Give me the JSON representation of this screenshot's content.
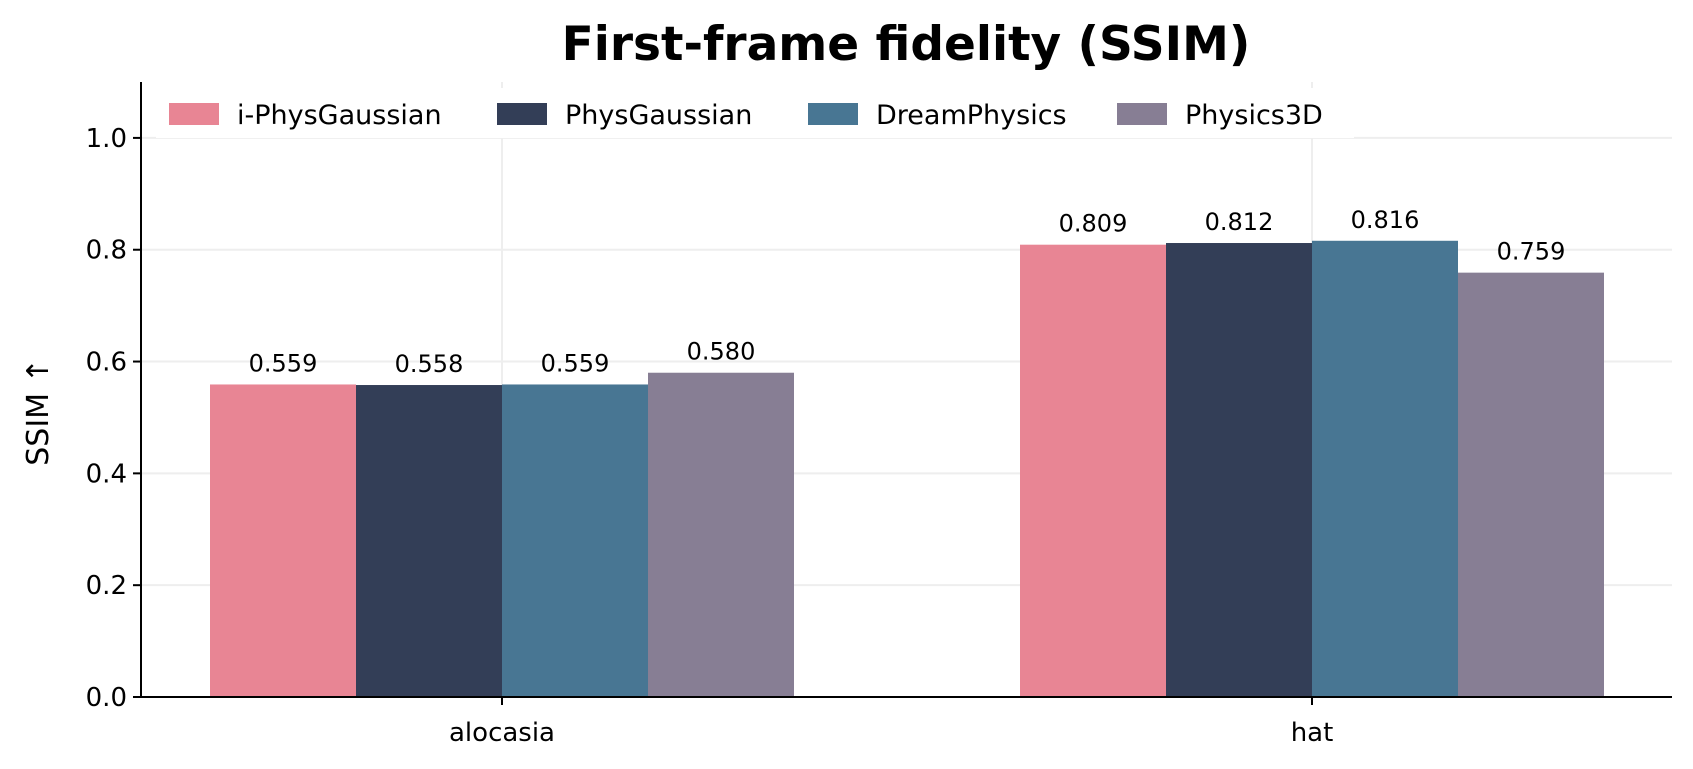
{
  "chart_data": {
    "type": "bar",
    "title": "First-frame fidelity (SSIM)",
    "xlabel": "",
    "ylabel": "SSIM ↑",
    "ylim": [
      0,
      1.1
    ],
    "yticks": [
      "0.0",
      "0.2",
      "0.4",
      "0.6",
      "0.8",
      "1.0"
    ],
    "categories": [
      "alocasia",
      "hat"
    ],
    "grid": true,
    "legend_position": "top-left",
    "series": [
      {
        "name": "i-PhysGaussian",
        "color": "#e88594",
        "values": [
          0.559,
          0.809
        ],
        "labels": [
          "0.559",
          "0.809"
        ]
      },
      {
        "name": "PhysGaussian",
        "color": "#333e57",
        "values": [
          0.558,
          0.812
        ],
        "labels": [
          "0.558",
          "0.812"
        ]
      },
      {
        "name": "DreamPhysics",
        "color": "#487693",
        "values": [
          0.559,
          0.816
        ],
        "labels": [
          "0.559",
          "0.816"
        ]
      },
      {
        "name": "Physics3D",
        "color": "#877e94",
        "values": [
          0.58,
          0.759
        ],
        "labels": [
          "0.580",
          "0.759"
        ]
      }
    ]
  }
}
